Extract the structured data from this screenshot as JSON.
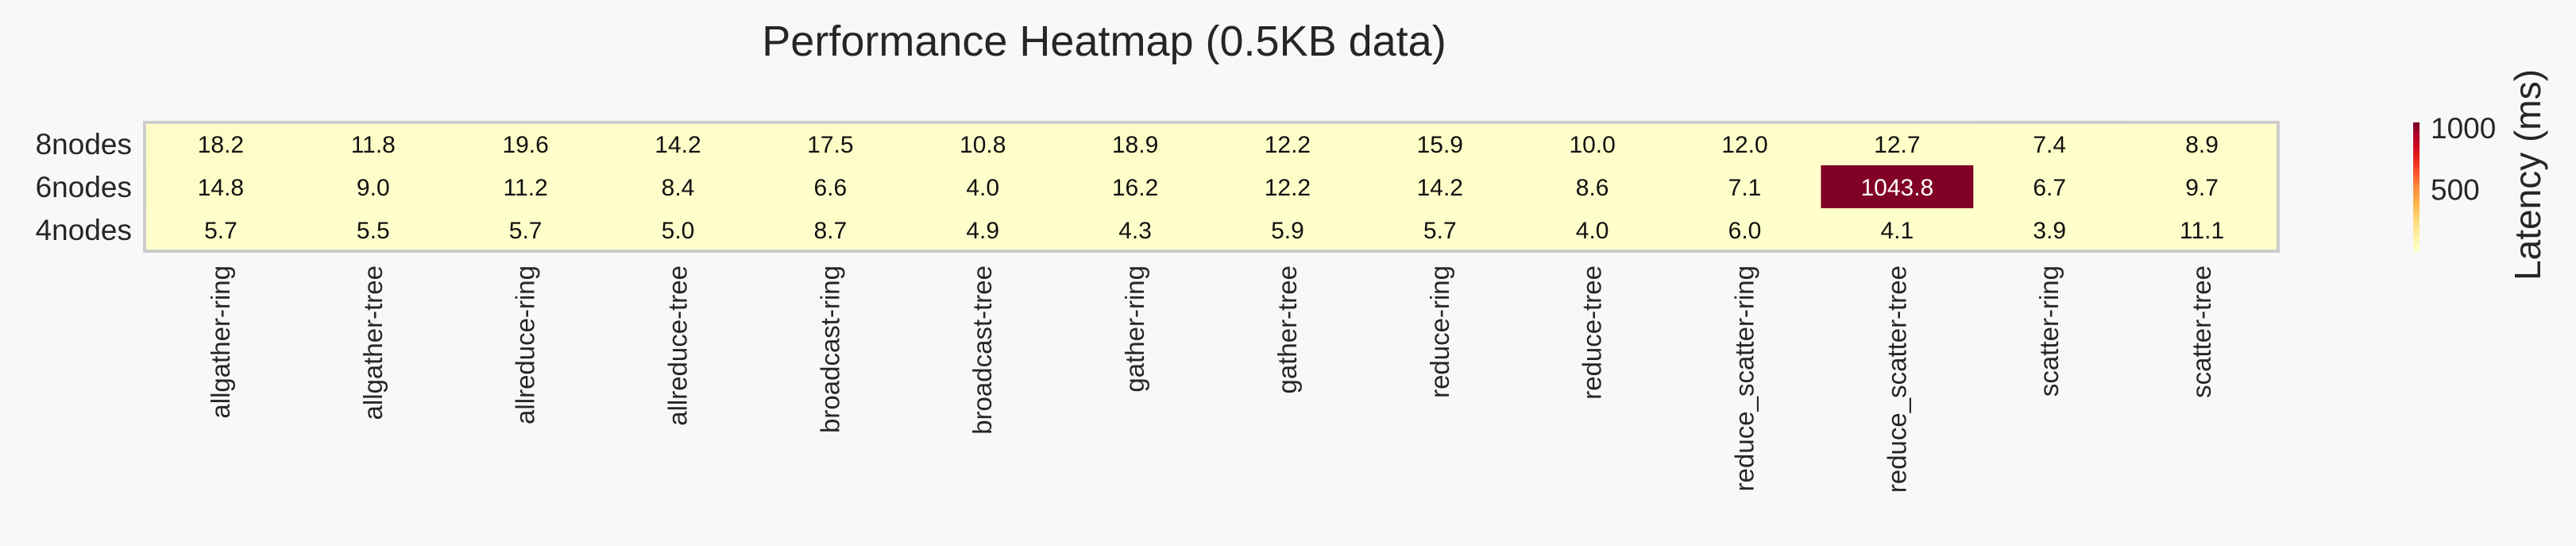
{
  "chart_data": {
    "type": "heatmap",
    "title": "Performance Heatmap (0.5KB data)",
    "rows": [
      "8nodes",
      "6nodes",
      "4nodes"
    ],
    "columns": [
      "allgather-ring",
      "allgather-tree",
      "allreduce-ring",
      "allreduce-tree",
      "broadcast-ring",
      "broadcast-tree",
      "gather-ring",
      "gather-tree",
      "reduce-ring",
      "reduce-tree",
      "reduce_scatter-ring",
      "reduce_scatter-tree",
      "scatter-ring",
      "scatter-tree"
    ],
    "values": [
      [
        18.2,
        11.8,
        19.6,
        14.2,
        17.5,
        10.8,
        18.9,
        12.2,
        15.9,
        10.0,
        12.0,
        12.7,
        7.4,
        8.9
      ],
      [
        14.8,
        9.0,
        11.2,
        8.4,
        6.6,
        4.0,
        16.2,
        12.2,
        14.2,
        8.6,
        7.1,
        1043.8,
        6.7,
        9.7
      ],
      [
        5.7,
        5.5,
        5.7,
        5.0,
        8.7,
        4.9,
        4.3,
        5.9,
        5.7,
        4.0,
        6.0,
        4.1,
        3.9,
        11.1
      ]
    ],
    "colorbar": {
      "label": "Latency (ms)",
      "ticks": [
        500,
        1000
      ],
      "range": [
        3.9,
        1043.8
      ],
      "colormap": [
        "#ffffcc",
        "#ffeda0",
        "#fed976",
        "#feb24c",
        "#fd8d3c",
        "#fc4e2a",
        "#e31a1c",
        "#bd0026",
        "#800026"
      ]
    },
    "grid": false
  }
}
